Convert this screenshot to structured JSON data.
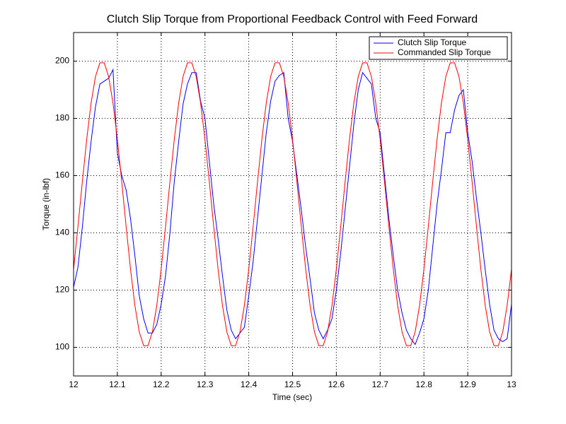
{
  "chart_data": {
    "type": "line",
    "title": "Clutch Slip Torque from Proportional Feedback Control with Feed Forward",
    "xlabel": "Time (sec)",
    "ylabel": "Torque (in-lbf)",
    "x": [
      12,
      12.01,
      12.02,
      12.03,
      12.04,
      12.05,
      12.06,
      12.07,
      12.08,
      12.09,
      12.1,
      12.11,
      12.12,
      12.13,
      12.14,
      12.15,
      12.16,
      12.17,
      12.18,
      12.19,
      12.2,
      12.21,
      12.22,
      12.23,
      12.24,
      12.25,
      12.26,
      12.27,
      12.28,
      12.29,
      12.3,
      12.31,
      12.32,
      12.33,
      12.34,
      12.35,
      12.36,
      12.37,
      12.38,
      12.39,
      12.4,
      12.41,
      12.42,
      12.43,
      12.44,
      12.45,
      12.46,
      12.47,
      12.48,
      12.49,
      12.5,
      12.51,
      12.52,
      12.53,
      12.54,
      12.55,
      12.56,
      12.57,
      12.58,
      12.59,
      12.6,
      12.61,
      12.62,
      12.63,
      12.64,
      12.65,
      12.66,
      12.67,
      12.68,
      12.69,
      12.7,
      12.71,
      12.72,
      12.73,
      12.74,
      12.75,
      12.76,
      12.77,
      12.78,
      12.79,
      12.8,
      12.81,
      12.82,
      12.83,
      12.84,
      12.85,
      12.86,
      12.87,
      12.88,
      12.89,
      12.9,
      12.91,
      12.92,
      12.93,
      12.94,
      12.95,
      12.96,
      12.97,
      12.98,
      12.99,
      13
    ],
    "series": [
      {
        "name": "Clutch Slip Torque",
        "color": "#0000ff",
        "values": [
          121,
          128,
          142,
          158,
          172,
          184,
          192,
          193,
          194,
          197,
          168,
          160,
          155,
          145,
          132,
          118,
          110,
          105,
          105,
          108,
          115,
          125,
          140,
          158,
          172,
          185,
          192,
          196,
          196,
          186,
          180,
          165,
          150,
          138,
          125,
          113,
          106,
          103,
          105,
          107,
          118,
          130,
          145,
          160,
          175,
          186,
          193,
          195,
          196,
          180,
          172,
          160,
          148,
          135,
          124,
          112,
          106,
          103,
          106,
          110,
          120,
          133,
          148,
          163,
          178,
          190,
          196,
          194,
          192,
          180,
          175,
          160,
          145,
          132,
          120,
          112,
          106,
          103,
          101,
          105,
          110,
          120,
          135,
          150,
          162,
          175,
          175,
          183,
          188,
          190,
          175,
          165,
          152,
          140,
          127,
          115,
          106,
          103,
          102,
          103,
          115
        ]
      },
      {
        "name": "Commanded Slip Torque",
        "color": "#ff0000",
        "values": [
          127.3,
          142.2,
          157.8,
          172.7,
          185.4,
          194.6,
          199.4,
          199.4,
          194.6,
          185.4,
          172.7,
          157.8,
          142.2,
          127.3,
          114.6,
          105.4,
          100.6,
          100.6,
          105.4,
          114.6,
          127.3,
          142.2,
          157.8,
          172.7,
          185.4,
          194.6,
          199.4,
          199.4,
          194.6,
          185.4,
          172.7,
          157.8,
          142.2,
          127.3,
          114.6,
          105.4,
          100.6,
          100.6,
          105.4,
          114.6,
          127.3,
          142.2,
          157.8,
          172.7,
          185.4,
          194.6,
          199.4,
          199.4,
          194.6,
          185.4,
          172.7,
          157.8,
          142.2,
          127.3,
          114.6,
          105.4,
          100.6,
          100.6,
          105.4,
          114.6,
          127.3,
          142.2,
          157.8,
          172.7,
          185.4,
          194.6,
          199.4,
          199.4,
          194.6,
          185.4,
          172.7,
          157.8,
          142.2,
          127.3,
          114.6,
          105.4,
          100.6,
          100.6,
          105.4,
          114.6,
          127.3,
          142.2,
          157.8,
          172.7,
          185.4,
          194.6,
          199.4,
          199.4,
          194.6,
          185.4,
          172.7,
          157.8,
          142.2,
          127.3,
          114.6,
          105.4,
          100.6,
          100.6,
          105.4,
          114.6,
          127.3
        ]
      }
    ],
    "xlim": [
      12,
      13
    ],
    "xticks": [
      12,
      12.1,
      12.2,
      12.3,
      12.4,
      12.5,
      12.6,
      12.7,
      12.8,
      12.9,
      13
    ],
    "ylim": [
      90,
      210
    ],
    "yticks": [
      100,
      120,
      140,
      160,
      180,
      200
    ],
    "grid": true,
    "legend": "top-right"
  }
}
